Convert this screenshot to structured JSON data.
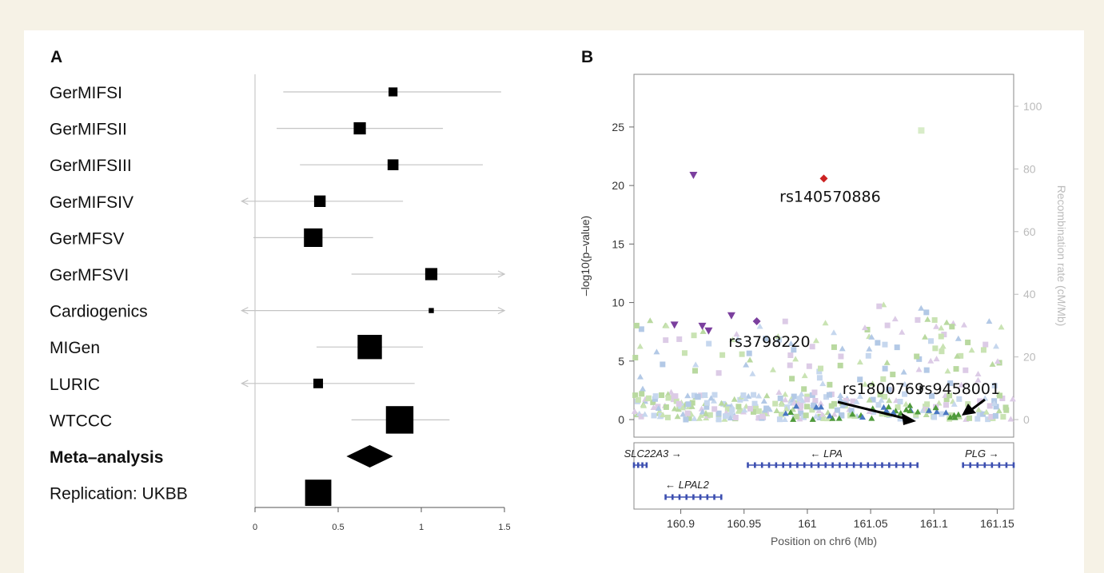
{
  "panels": {
    "a": "A",
    "b": "B"
  },
  "chart_data": [
    {
      "type": "forest",
      "xlim": [
        0,
        1.5
      ],
      "xticks": [
        "0",
        "0.5",
        "1",
        "1.5"
      ],
      "rows": [
        {
          "label": "GerMIFSI",
          "est": 0.83,
          "lo": 0.17,
          "hi": 1.48,
          "weight": 0.9,
          "bold": false
        },
        {
          "label": "GerMIFSII",
          "est": 0.63,
          "lo": 0.13,
          "hi": 1.13,
          "weight": 1.4,
          "bold": false
        },
        {
          "label": "GerMIFSIII",
          "est": 0.83,
          "lo": 0.27,
          "hi": 1.37,
          "weight": 1.2,
          "bold": false
        },
        {
          "label": "GerMIFSIV",
          "est": 0.39,
          "lo": -0.1,
          "hi": 0.89,
          "weight": 1.3,
          "bold": false,
          "arrow_left": true
        },
        {
          "label": "GerMFSV",
          "est": 0.35,
          "lo": -0.01,
          "hi": 0.71,
          "weight": 2.4,
          "bold": false
        },
        {
          "label": "GerMFSVI",
          "est": 1.06,
          "lo": 0.58,
          "hi": 1.5,
          "weight": 1.4,
          "bold": false,
          "arrow_right": true
        },
        {
          "label": "Cardiogenics",
          "est": 1.06,
          "lo": -0.1,
          "hi": 1.5,
          "weight": 0.3,
          "bold": false,
          "arrow_left": true,
          "arrow_right": true
        },
        {
          "label": "MIGen",
          "est": 0.69,
          "lo": 0.37,
          "hi": 1.01,
          "weight": 3.3,
          "bold": false
        },
        {
          "label": "LURIC",
          "est": 0.38,
          "lo": -0.1,
          "hi": 0.96,
          "weight": 1.0,
          "bold": false,
          "arrow_left": true
        },
        {
          "label": "WTCCC",
          "est": 0.87,
          "lo": 0.58,
          "hi": 1.17,
          "weight": 3.8,
          "bold": false
        },
        {
          "label": "Meta–analysis",
          "est": 0.69,
          "lo": 0.55,
          "hi": 0.83,
          "bold": true,
          "diamond": true
        },
        {
          "label": "Replication: UKBB",
          "est": 0.38,
          "lo": 0.38,
          "hi": 0.38,
          "weight": 3.6,
          "bold": false
        }
      ]
    },
    {
      "type": "scatter",
      "xlabel": "Position on chr6 (Mb)",
      "ylabel": "–log10(p–value)",
      "ylabel2": "Recombination rate (cM/Mb)",
      "xlim": [
        160.863,
        161.163
      ],
      "ylim": [
        -1.5,
        29.5
      ],
      "y2lim": [
        -5.6,
        110.2
      ],
      "xticks": [
        "160.9",
        "160.95",
        "161",
        "161.05",
        "161.1",
        "161.15"
      ],
      "yticks": [
        "0",
        "5",
        "10",
        "15",
        "20",
        "25"
      ],
      "y2ticks": [
        "0",
        "20",
        "40",
        "60",
        "80",
        "100"
      ],
      "highlight_points": [
        {
          "x": 160.91,
          "y": 20.9,
          "shape": "tri-down",
          "color": "#7b3f9e"
        },
        {
          "x": 161.013,
          "y": 20.6,
          "shape": "diamond",
          "color": "#cc2222"
        },
        {
          "x": 161.09,
          "y": 24.7,
          "shape": "square",
          "color": "#d8ecc8"
        },
        {
          "x": 160.895,
          "y": 8.1,
          "shape": "tri-down",
          "color": "#7b3f9e"
        },
        {
          "x": 160.917,
          "y": 8.0,
          "shape": "tri-down",
          "color": "#7b3f9e"
        },
        {
          "x": 160.922,
          "y": 7.6,
          "shape": "tri-down",
          "color": "#7b3f9e"
        },
        {
          "x": 160.94,
          "y": 8.9,
          "shape": "tri-down",
          "color": "#7b3f9e"
        },
        {
          "x": 160.96,
          "y": 8.4,
          "shape": "diamond",
          "color": "#7b3f9e"
        }
      ],
      "annotations": [
        {
          "text": "rs140570886",
          "x": 161.018,
          "y": 18.6
        },
        {
          "text": "rs3798220",
          "x": 160.97,
          "y": 6.2
        },
        {
          "text": "rs1800769",
          "x": 161.06,
          "y": 2.2
        },
        {
          "text": "rs9458001",
          "x": 161.12,
          "y": 2.2
        }
      ],
      "genes": [
        {
          "name": "SLC22A3",
          "dir": "→",
          "start": 160.863,
          "end": 160.873,
          "row": 0,
          "label_x": 160.878
        },
        {
          "name": "LPA",
          "dir": "←",
          "start": 160.953,
          "end": 161.087,
          "row": 0,
          "label_x": 161.015
        },
        {
          "name": "PLG",
          "dir": "→",
          "start": 161.123,
          "end": 161.163,
          "row": 0,
          "label_x": 161.138
        },
        {
          "name": "LPAL2",
          "dir": "←",
          "start": 160.888,
          "end": 160.932,
          "row": 1,
          "label_x": 160.905
        }
      ]
    }
  ]
}
